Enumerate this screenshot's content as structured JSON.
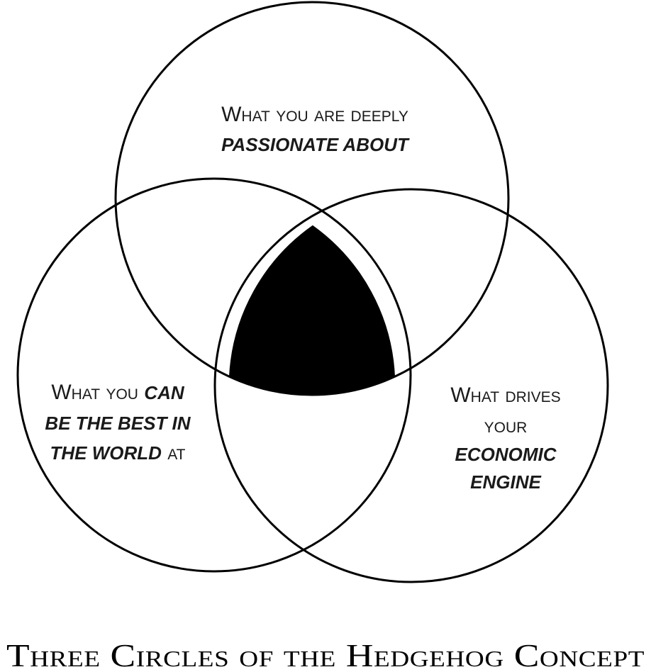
{
  "title": "Three Circles of the Hedgehog Concept",
  "circles": {
    "top": {
      "line1": "What you are deeply",
      "line2": "passionate about"
    },
    "left": {
      "line1_plain": "What you ",
      "line1_emph": "can",
      "line2": "be the best in",
      "line3_emph": "the world",
      "line3_plain": " at"
    },
    "right": {
      "line1": "What drives",
      "line2": "your",
      "line3": "economic",
      "line4": "engine"
    }
  },
  "colors": {
    "stroke": "#000000",
    "intersection_fill": "#000000",
    "text": "#1a1a1a",
    "background": "#ffffff"
  }
}
